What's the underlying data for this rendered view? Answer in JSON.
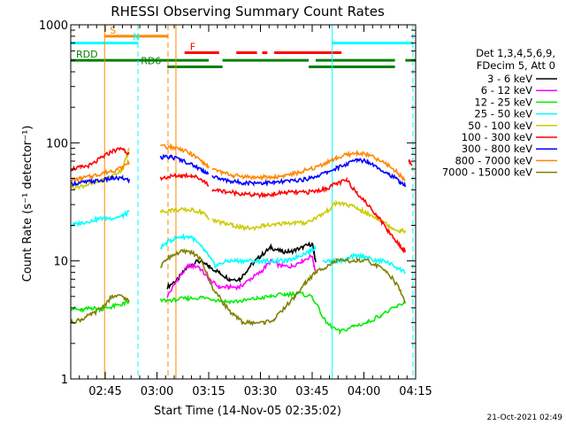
{
  "chart_data": {
    "type": "line",
    "title": "RHESSI Observing Summary Count Rates",
    "xlabel": "Start Time (14-Nov-05 02:35:02)",
    "ylabel": "Count Rate (s⁻¹ detector⁻¹)",
    "yscale": "log",
    "ylim": [
      1,
      1000
    ],
    "y_ticks": [
      {
        "value": 1,
        "label": "1"
      },
      {
        "value": 10,
        "label": "10"
      },
      {
        "value": 100,
        "label": "100"
      },
      {
        "value": 1000,
        "label": "1000"
      }
    ],
    "xlim_minutes": [
      0,
      100
    ],
    "x_ticks": [
      {
        "value": 10,
        "label": "02:45"
      },
      {
        "value": 25,
        "label": "03:00"
      },
      {
        "value": 40,
        "label": "03:15"
      },
      {
        "value": 55,
        "label": "03:30"
      },
      {
        "value": 70,
        "label": "03:45"
      },
      {
        "value": 85,
        "label": "04:00"
      },
      {
        "value": 100,
        "label": "04:15"
      }
    ],
    "legend": {
      "placement": "right",
      "header": [
        "Det 1,3,4,5,6,9,",
        "FDecim 5, Att 0"
      ],
      "entries": [
        {
          "name": "3 - 6 keV",
          "color": "#000000"
        },
        {
          "name": "6 - 12 keV",
          "color": "#ff00ff"
        },
        {
          "name": "12 - 25 keV",
          "color": "#00ee00"
        },
        {
          "name": "25 - 50 keV",
          "color": "#00ffff"
        },
        {
          "name": "50 - 100 keV",
          "color": "#cccc00"
        },
        {
          "name": "100 - 300 keV",
          "color": "#ff0000"
        },
        {
          "name": "300 - 800 keV",
          "color": "#0000ff"
        },
        {
          "name": "800 - 7000 keV",
          "color": "#ff8800"
        },
        {
          "name": "7000 - 15000 keV",
          "color": "#808000"
        }
      ]
    },
    "series": [
      {
        "name": "3 - 6 keV",
        "color": "#000000",
        "x": [
          28,
          31,
          34,
          37,
          40,
          43,
          46,
          49,
          52,
          55,
          58,
          61,
          64,
          67,
          70,
          71
        ],
        "y": [
          6,
          7,
          9,
          10,
          9,
          8,
          7,
          7,
          9,
          11,
          13,
          12,
          12,
          13,
          14,
          10
        ]
      },
      {
        "name": "6 - 12 keV",
        "color": "#ff00ff",
        "x": [
          28,
          31,
          34,
          37,
          40,
          43,
          46,
          49,
          52,
          55,
          58,
          61,
          64,
          67,
          70,
          71
        ],
        "y": [
          5,
          7,
          9,
          9,
          7,
          6,
          6,
          6,
          7,
          8,
          10,
          9,
          9,
          10,
          11,
          8
        ]
      },
      {
        "name": "12 - 25 keV",
        "color": "#00ee00",
        "x": [
          0,
          3,
          6,
          9,
          12,
          15,
          17,
          null,
          26,
          30,
          34,
          38,
          42,
          46,
          50,
          54,
          58,
          62,
          66,
          70,
          74,
          78,
          82,
          86,
          90,
          94,
          97
        ],
        "y": [
          4,
          3.8,
          4,
          3.9,
          4.1,
          4.3,
          4.5,
          null,
          4.6,
          4.7,
          4.8,
          4.9,
          4.7,
          4.5,
          4.6,
          4.8,
          5,
          5.2,
          5.3,
          5,
          3,
          2.5,
          2.8,
          3,
          3.5,
          4,
          4.5
        ]
      },
      {
        "name": "25 - 50 keV",
        "color": "#00ffff",
        "x": [
          0,
          3,
          6,
          9,
          12,
          15,
          17,
          null,
          26,
          29,
          32,
          35,
          38,
          40,
          42,
          45,
          48,
          51,
          54,
          57,
          60,
          63,
          66,
          69,
          71,
          null,
          73,
          76,
          79,
          82,
          85,
          88,
          91,
          94,
          97
        ],
        "y": [
          20,
          21,
          22,
          23,
          23,
          24,
          26,
          null,
          13,
          15,
          16,
          16,
          13,
          11,
          9,
          10,
          10,
          10,
          10,
          10,
          10,
          10,
          11,
          12,
          13,
          null,
          10,
          10,
          10,
          11,
          11,
          10,
          10,
          9,
          8
        ]
      },
      {
        "name": "50 - 100 keV",
        "color": "#cccc00",
        "x": [
          0,
          3,
          6,
          9,
          12,
          15,
          17,
          null,
          26,
          29,
          32,
          35,
          38,
          40,
          null,
          41,
          44,
          47,
          50,
          53,
          56,
          59,
          62,
          65,
          68,
          71,
          74,
          77,
          80,
          83,
          86,
          89,
          92,
          95,
          97
        ],
        "y": [
          42,
          43,
          45,
          48,
          52,
          60,
          90,
          null,
          26,
          27,
          27,
          27,
          26,
          23,
          null,
          22,
          21,
          20,
          19,
          19,
          20,
          20,
          21,
          21,
          21,
          23,
          26,
          31,
          30,
          28,
          25,
          23,
          20,
          18,
          18
        ]
      },
      {
        "name": "100 - 300 keV",
        "color": "#ff0000",
        "x": [
          0,
          3,
          6,
          9,
          12,
          15,
          17,
          null,
          26,
          29,
          32,
          35,
          38,
          40,
          null,
          41,
          44,
          47,
          50,
          53,
          56,
          59,
          62,
          65,
          68,
          71,
          74,
          77,
          80,
          83,
          86,
          89,
          92,
          95,
          97,
          null,
          98,
          99
        ],
        "y": [
          60,
          62,
          65,
          75,
          85,
          90,
          80,
          null,
          50,
          52,
          53,
          53,
          49,
          44,
          null,
          40,
          39,
          38,
          37,
          36,
          36,
          37,
          38,
          38,
          38,
          39,
          41,
          45,
          48,
          38,
          30,
          24,
          18,
          14,
          12,
          null,
          70,
          65
        ]
      },
      {
        "name": "300 - 800 keV",
        "color": "#0000ff",
        "x": [
          0,
          3,
          6,
          9,
          12,
          15,
          17,
          null,
          26,
          29,
          32,
          35,
          38,
          40,
          null,
          41,
          44,
          47,
          50,
          53,
          56,
          59,
          62,
          65,
          68,
          71,
          74,
          77,
          80,
          83,
          86,
          89,
          92,
          95,
          97
        ],
        "y": [
          45,
          46,
          47,
          48,
          50,
          50,
          48,
          null,
          75,
          76,
          72,
          66,
          59,
          55,
          null,
          52,
          49,
          47,
          46,
          46,
          46,
          46,
          47,
          48,
          49,
          52,
          56,
          61,
          66,
          72,
          70,
          62,
          55,
          48,
          43
        ]
      },
      {
        "name": "800 - 7000 keV",
        "color": "#ff8800",
        "x": [
          0,
          3,
          6,
          9,
          12,
          15,
          17,
          null,
          26,
          29,
          32,
          35,
          38,
          40,
          null,
          41,
          44,
          47,
          50,
          53,
          56,
          59,
          62,
          65,
          68,
          71,
          74,
          77,
          80,
          83,
          86,
          89,
          92,
          95,
          97
        ],
        "y": [
          48,
          50,
          52,
          55,
          58,
          62,
          70,
          null,
          92,
          93,
          88,
          80,
          70,
          62,
          null,
          60,
          56,
          53,
          52,
          51,
          51,
          51,
          53,
          55,
          58,
          62,
          68,
          74,
          79,
          82,
          80,
          72,
          65,
          55,
          48
        ]
      },
      {
        "name": "7000 - 15000 keV",
        "color": "#808000",
        "x": [
          0,
          3,
          6,
          9,
          12,
          15,
          17,
          null,
          26,
          29,
          32,
          35,
          38,
          41,
          44,
          47,
          50,
          53,
          56,
          59,
          62,
          65,
          68,
          71,
          74,
          77,
          80,
          83,
          86,
          89,
          92,
          95,
          97
        ],
        "y": [
          3,
          3.2,
          3.5,
          4,
          5,
          5,
          4.5,
          null,
          9,
          11,
          12,
          12,
          10,
          6,
          4.5,
          3.5,
          3,
          3,
          3,
          3.2,
          4,
          5,
          6.5,
          8,
          9,
          10,
          10,
          10,
          10,
          9,
          8,
          6,
          4.5
        ]
      }
    ],
    "vertical_lines": [
      {
        "x_minute": 9.8,
        "color": "#ff8800",
        "style": "solid"
      },
      {
        "x_minute": 19.5,
        "color": "#00ffff",
        "style": "dashed"
      },
      {
        "x_minute": 28.2,
        "color": "#ff8800",
        "style": "dashed"
      },
      {
        "x_minute": 30.5,
        "color": "#ff8800",
        "style": "solid"
      },
      {
        "x_minute": 75.8,
        "color": "#00ffff",
        "style": "solid"
      },
      {
        "x_minute": 99.2,
        "color": "#00ffff",
        "style": "dashed"
      }
    ],
    "flag_bars": [
      {
        "label": "S",
        "color": "#ff8800",
        "y": 800,
        "segments": [
          [
            9.8,
            28.2
          ]
        ]
      },
      {
        "label": "N",
        "color": "#00ffff",
        "y": 700,
        "segments": [
          [
            0,
            19.5
          ],
          [
            75.8,
            99.2
          ]
        ]
      },
      {
        "label": "F",
        "color": "#ff0000",
        "y": 580,
        "segments": [
          [
            33,
            43
          ],
          [
            48,
            54
          ],
          [
            55.5,
            57
          ],
          [
            59,
            78.5
          ]
        ]
      },
      {
        "label": "RDD",
        "color": "#008000",
        "y": 500,
        "segments": [
          [
            0,
            40
          ],
          [
            44,
            69
          ],
          [
            71,
            94
          ],
          [
            97,
            100
          ]
        ]
      },
      {
        "label": "RD6",
        "color": "#008000",
        "y": 440,
        "segments": [
          [
            28,
            44
          ],
          [
            69,
            94
          ]
        ]
      }
    ],
    "timestamp": "21-Oct-2021 02:49"
  }
}
